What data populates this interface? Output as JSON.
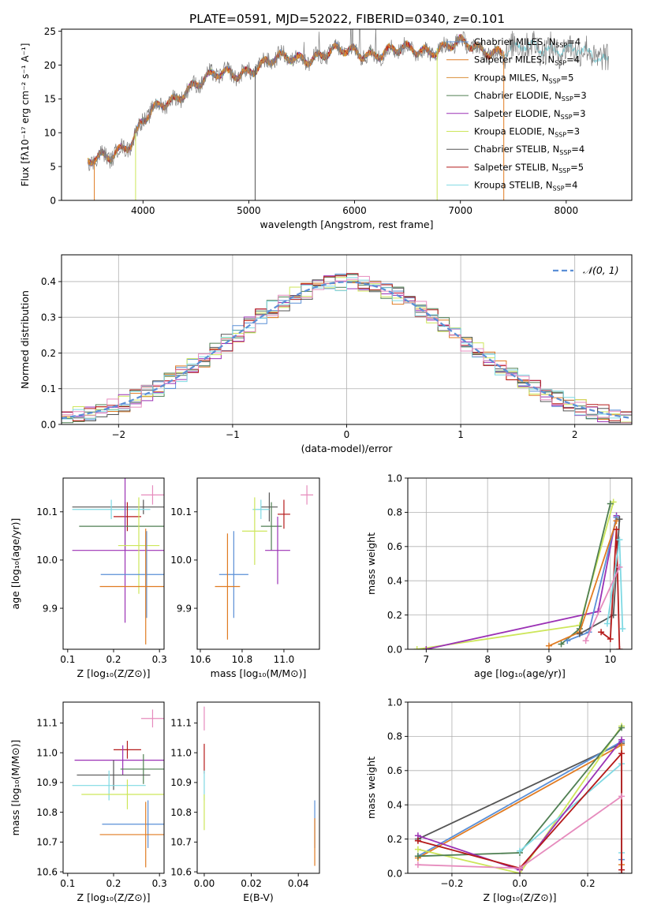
{
  "figure_title": "PLATE=0591, MJD=52022, FIBERID=0340, z=0.101",
  "colors": {
    "Chabrier MILES": "#5a8fd6",
    "Salpeter MILES": "#e07b22",
    "Kroupa MILES": "#d98e37",
    "Chabrier ELODIE": "#4f7f52",
    "Salpeter ELODIE": "#9b31b5",
    "Kroupa ELODIE": "#cde65a",
    "Chabrier STELIB": "#555555",
    "Salpeter STELIB": "#b51a1a",
    "Kroupa STELIB": "#7fd9e3",
    "pink": "#e68bbd",
    "normal_curve": "#5b8fd6"
  },
  "chart_data": [
    {
      "id": "spectrum",
      "type": "line",
      "xlabel": "wavelength [Angstrom, rest frame]",
      "ylabel": "Flux [fλ10⁻¹⁷ erg cm⁻² s⁻¹ A⁻¹]",
      "xlim": [
        3230,
        8620
      ],
      "ylim": [
        0,
        25.3
      ],
      "xticks": [
        4000,
        5000,
        6000,
        7000,
        8000
      ],
      "yticks": [
        0,
        5,
        10,
        15,
        20,
        25
      ],
      "legend_position": "top-right",
      "legend": [
        {
          "name": "Chabrier MILES",
          "nssp": "4",
          "color": "#5a8fd6"
        },
        {
          "name": "Salpeter MILES",
          "nssp": "4",
          "color": "#e07b22"
        },
        {
          "name": "Kroupa MILES",
          "nssp": "5",
          "color": "#d98e37"
        },
        {
          "name": "Chabrier ELODIE",
          "nssp": "3",
          "color": "#4f7f52"
        },
        {
          "name": "Salpeter ELODIE",
          "nssp": "3",
          "color": "#9b31b5"
        },
        {
          "name": "Kroupa ELODIE",
          "nssp": "3",
          "color": "#cde65a"
        },
        {
          "name": "Chabrier STELIB",
          "nssp": "4",
          "color": "#555555"
        },
        {
          "name": "Salpeter STELIB",
          "nssp": "5",
          "color": "#b51a1a"
        },
        {
          "name": "Kroupa STELIB",
          "nssp": "4",
          "color": "#7fd9e3"
        }
      ],
      "continuum": {
        "x": [
          3480,
          3600,
          3700,
          3800,
          3900,
          4000,
          4100,
          4200,
          4300,
          4400,
          4500,
          4600,
          4700,
          4800,
          4900,
          5000,
          5100,
          5200,
          5400,
          5600,
          5800,
          6000,
          6200,
          6400,
          6600,
          6800,
          7000,
          7200,
          7400,
          7600,
          7800,
          8000,
          8200,
          8400
        ],
        "y": [
          5.5,
          6.0,
          6.5,
          8.0,
          9.0,
          12.0,
          13.0,
          14.0,
          14.8,
          16.5,
          17.5,
          18.0,
          18.3,
          18.5,
          18.8,
          19.5,
          20.0,
          20.5,
          21.0,
          21.3,
          21.8,
          22.0,
          21.8,
          22.0,
          22.3,
          22.5,
          23.0,
          22.5,
          22.0,
          22.5,
          22.8,
          22.3,
          21.5,
          21.0
        ]
      },
      "dropouts": [
        {
          "x": 3540,
          "color": "#e07b22"
        },
        {
          "x": 3930,
          "color": "#cde65a"
        },
        {
          "x": 5060,
          "color": "#555555"
        },
        {
          "x": 6780,
          "color": "#cde65a"
        },
        {
          "x": 7410,
          "color": "#e07b22"
        }
      ]
    },
    {
      "id": "residuals",
      "type": "histogram",
      "xlabel": "(data-model)/error",
      "ylabel": "Normed distribution",
      "xlim": [
        -2.5,
        2.5
      ],
      "ylim": [
        0,
        0.475
      ],
      "xticks": [
        -2,
        -1,
        0,
        1,
        2
      ],
      "yticks": [
        0.0,
        0.1,
        0.2,
        0.3,
        0.4
      ],
      "bin_width": 0.1,
      "grid": true,
      "legend_label": "𝒩(0, 1)",
      "legend_position": "top-right",
      "hist_colors": [
        "#5a8fd6",
        "#e07b22",
        "#4f7f52",
        "#9b31b5",
        "#cde65a",
        "#555555",
        "#b51a1a",
        "#7fd9e3",
        "#e68bbd"
      ]
    },
    {
      "id": "age_vs_Z",
      "type": "errorbar",
      "xlabel": "Z [log₁₀(Z/Z⊙)]",
      "ylabel": "age  [log₁₀(age/yr)]",
      "xlim": [
        0.09,
        0.31
      ],
      "ylim": [
        9.815,
        10.17
      ],
      "xticks": [
        0.1,
        0.2,
        0.3
      ],
      "yticks": [
        9.9,
        10.0,
        10.1
      ],
      "points": [
        {
          "x": 0.265,
          "y": 10.11,
          "ex": 0.155,
          "ey": 0.015,
          "color": "#555555"
        },
        {
          "x": 0.195,
          "y": 10.105,
          "ex": 0.085,
          "ey": 0.02,
          "color": "#7fd9e3"
        },
        {
          "x": 0.23,
          "y": 10.09,
          "ex": 0.03,
          "ey": 0.03,
          "color": "#b51a1a"
        },
        {
          "x": 0.225,
          "y": 10.07,
          "ex": 0.1,
          "ey": 0.05,
          "color": "#4f7f52"
        },
        {
          "x": 0.285,
          "y": 10.135,
          "ex": 0.025,
          "ey": 0.02,
          "color": "#e68bbd"
        },
        {
          "x": 0.225,
          "y": 10.02,
          "ex": 0.115,
          "ey": 0.15,
          "color": "#9b31b5"
        },
        {
          "x": 0.255,
          "y": 10.03,
          "ex": 0.045,
          "ey": 0.1,
          "color": "#cde65a"
        },
        {
          "x": 0.272,
          "y": 9.97,
          "ex": 0.1,
          "ey": 0.09,
          "color": "#5a8fd6"
        },
        {
          "x": 0.27,
          "y": 9.945,
          "ex": 0.1,
          "ey": 0.12,
          "color": "#e07b22"
        }
      ]
    },
    {
      "id": "age_vs_mass",
      "type": "errorbar",
      "xlabel": "mass [log₁₀(M/M⊙)]",
      "ylabel": "",
      "xlim": [
        10.585,
        11.17
      ],
      "ylim": [
        9.815,
        10.17
      ],
      "xticks": [
        10.6,
        10.8,
        11.0
      ],
      "yticks": [
        9.9,
        10.0,
        10.1
      ],
      "points": [
        {
          "x": 10.93,
          "y": 10.11,
          "ex": 0.04,
          "ey": 0.03,
          "color": "#555555"
        },
        {
          "x": 10.89,
          "y": 10.105,
          "ex": 0.04,
          "ey": 0.02,
          "color": "#7fd9e3"
        },
        {
          "x": 11.0,
          "y": 10.095,
          "ex": 0.03,
          "ey": 0.03,
          "color": "#b51a1a"
        },
        {
          "x": 10.94,
          "y": 10.07,
          "ex": 0.05,
          "ey": 0.05,
          "color": "#4f7f52"
        },
        {
          "x": 11.11,
          "y": 10.135,
          "ex": 0.03,
          "ey": 0.02,
          "color": "#e68bbd"
        },
        {
          "x": 10.97,
          "y": 10.02,
          "ex": 0.06,
          "ey": 0.07,
          "color": "#9b31b5"
        },
        {
          "x": 10.86,
          "y": 10.06,
          "ex": 0.06,
          "ey": 0.07,
          "color": "#cde65a"
        },
        {
          "x": 10.76,
          "y": 9.97,
          "ex": 0.07,
          "ey": 0.09,
          "color": "#5a8fd6"
        },
        {
          "x": 10.73,
          "y": 9.945,
          "ex": 0.06,
          "ey": 0.11,
          "color": "#e07b22"
        }
      ]
    },
    {
      "id": "massweight_vs_age",
      "type": "line",
      "xlabel": "age  [log₁₀(age/yr)]",
      "ylabel": "mass weight",
      "xlim": [
        6.7,
        10.35
      ],
      "ylim": [
        0,
        1.0
      ],
      "xticks": [
        7,
        8,
        9,
        10
      ],
      "yticks": [
        0.0,
        0.2,
        0.4,
        0.6,
        0.8,
        1.0
      ],
      "grid": true,
      "series": [
        {
          "color": "#cde65a",
          "x": [
            6.85,
            9.5,
            10.05
          ],
          "y": [
            0.0,
            0.14,
            0.86
          ]
        },
        {
          "color": "#9b31b5",
          "x": [
            7.0,
            9.8,
            10.1
          ],
          "y": [
            0.0,
            0.22,
            0.78
          ]
        },
        {
          "color": "#4f7f52",
          "x": [
            9.2,
            9.5,
            10.0
          ],
          "y": [
            0.03,
            0.12,
            0.85
          ]
        },
        {
          "color": "#5a8fd6",
          "x": [
            9.3,
            9.65,
            10.1
          ],
          "y": [
            0.05,
            0.1,
            0.77
          ]
        },
        {
          "color": "#e07b22",
          "x": [
            9.0,
            9.5,
            10.1
          ],
          "y": [
            0.02,
            0.1,
            0.75
          ]
        },
        {
          "color": "#555555",
          "x": [
            9.5,
            10.05,
            10.15
          ],
          "y": [
            0.09,
            0.2,
            0.76
          ]
        },
        {
          "color": "#b51a1a",
          "x": [
            9.85,
            10.0,
            10.1,
            10.15
          ],
          "y": [
            0.1,
            0.06,
            0.7,
            0.0
          ]
        },
        {
          "color": "#7fd9e3",
          "x": [
            9.95,
            10.15,
            10.2
          ],
          "y": [
            0.15,
            0.64,
            0.12
          ]
        },
        {
          "color": "#e68bbd",
          "x": [
            9.6,
            10.15
          ],
          "y": [
            0.05,
            0.48
          ]
        }
      ]
    },
    {
      "id": "mass_vs_Z",
      "type": "errorbar",
      "xlabel": "Z [log₁₀(Z/Z⊙)]",
      "ylabel": "mass [log₁₀(M/M⊙)]",
      "xlim": [
        0.09,
        0.31
      ],
      "ylim": [
        10.595,
        11.17
      ],
      "xticks": [
        0.1,
        0.2,
        0.3
      ],
      "yticks": [
        10.6,
        10.7,
        10.8,
        10.9,
        11.0,
        11.1
      ],
      "points": [
        {
          "x": 0.285,
          "y": 11.115,
          "ex": 0.025,
          "ey": 0.03,
          "color": "#e68bbd"
        },
        {
          "x": 0.23,
          "y": 11.01,
          "ex": 0.03,
          "ey": 0.03,
          "color": "#b51a1a"
        },
        {
          "x": 0.22,
          "y": 10.975,
          "ex": 0.105,
          "ey": 0.05,
          "color": "#9b31b5"
        },
        {
          "x": 0.265,
          "y": 10.945,
          "ex": 0.05,
          "ey": 0.05,
          "color": "#4f7f52"
        },
        {
          "x": 0.2,
          "y": 10.925,
          "ex": 0.08,
          "ey": 0.05,
          "color": "#555555"
        },
        {
          "x": 0.19,
          "y": 10.89,
          "ex": 0.08,
          "ey": 0.05,
          "color": "#7fd9e3"
        },
        {
          "x": 0.23,
          "y": 10.86,
          "ex": 0.1,
          "ey": 0.05,
          "color": "#cde65a"
        },
        {
          "x": 0.275,
          "y": 10.76,
          "ex": 0.1,
          "ey": 0.08,
          "color": "#5a8fd6"
        },
        {
          "x": 0.27,
          "y": 10.725,
          "ex": 0.1,
          "ey": 0.11,
          "color": "#e07b22"
        }
      ]
    },
    {
      "id": "mass_vs_EBV",
      "type": "errorbar",
      "xlabel": "E(B-V)",
      "ylabel": "",
      "xlim": [
        -0.003,
        0.049
      ],
      "ylim": [
        10.595,
        11.17
      ],
      "xticks": [
        0.0,
        0.02,
        0.04
      ],
      "yticks": [
        10.6,
        10.7,
        10.8,
        10.9,
        11.0,
        11.1
      ],
      "points": [
        {
          "x": 0.0,
          "y": 11.115,
          "ex": 0,
          "ey": 0.04,
          "color": "#e68bbd"
        },
        {
          "x": 0.0,
          "y": 10.98,
          "ex": 0,
          "ey": 0.05,
          "color": "#b51a1a"
        },
        {
          "x": 0.0,
          "y": 10.89,
          "ex": 0,
          "ey": 0.05,
          "color": "#7fd9e3"
        },
        {
          "x": 0.0,
          "y": 10.8,
          "ex": 0,
          "ey": 0.06,
          "color": "#cde65a"
        },
        {
          "x": 0.047,
          "y": 10.76,
          "ex": 0,
          "ey": 0.08,
          "color": "#5a8fd6"
        },
        {
          "x": 0.047,
          "y": 10.7,
          "ex": 0,
          "ey": 0.08,
          "color": "#e07b22"
        }
      ]
    },
    {
      "id": "massweight_vs_Z",
      "type": "line",
      "xlabel": "Z [log₁₀(Z/Z⊙)]",
      "ylabel": "mass weight",
      "xlim": [
        -0.33,
        0.33
      ],
      "ylim": [
        0,
        1.0
      ],
      "xticks": [
        -0.2,
        0.0,
        0.2
      ],
      "yticks": [
        0.0,
        0.2,
        0.4,
        0.6,
        0.8,
        1.0
      ],
      "grid": true,
      "series": [
        {
          "color": "#555555",
          "x": [
            -0.3,
            0.3,
            0.3
          ],
          "y": [
            0.2,
            0.76,
            0.0
          ]
        },
        {
          "color": "#5a8fd6",
          "x": [
            -0.3,
            0.3,
            0.3
          ],
          "y": [
            0.1,
            0.77,
            0.08
          ]
        },
        {
          "color": "#e07b22",
          "x": [
            -0.3,
            0.3,
            0.3
          ],
          "y": [
            0.09,
            0.75,
            0.05
          ]
        },
        {
          "color": "#cde65a",
          "x": [
            -0.3,
            0.0,
            0.3
          ],
          "y": [
            0.14,
            0.0,
            0.86
          ]
        },
        {
          "color": "#4f7f52",
          "x": [
            -0.3,
            0.0,
            0.3
          ],
          "y": [
            0.1,
            0.12,
            0.85
          ]
        },
        {
          "color": "#7fd9e3",
          "x": [
            0.0,
            0.3,
            0.3
          ],
          "y": [
            0.13,
            0.64,
            0.12
          ]
        },
        {
          "color": "#9b31b5",
          "x": [
            -0.3,
            0.0,
            0.3
          ],
          "y": [
            0.22,
            0.02,
            0.78
          ]
        },
        {
          "color": "#b51a1a",
          "x": [
            -0.3,
            0.0,
            0.3,
            0.3
          ],
          "y": [
            0.19,
            0.03,
            0.7,
            0.02
          ]
        },
        {
          "color": "#e68bbd",
          "x": [
            -0.3,
            0.0,
            0.3
          ],
          "y": [
            0.05,
            0.03,
            0.45
          ]
        }
      ]
    }
  ]
}
